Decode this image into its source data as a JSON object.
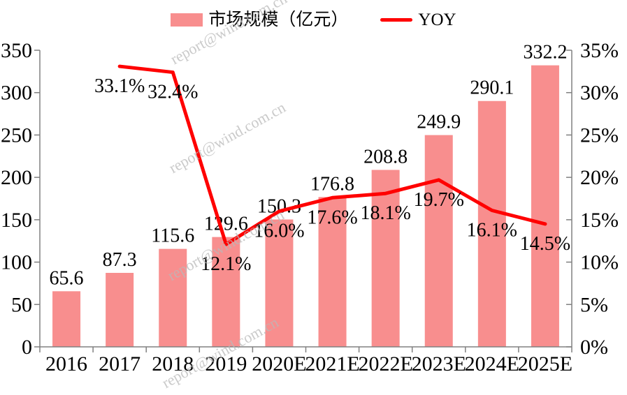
{
  "page": {
    "background": "#FFFFFF"
  },
  "legend": {
    "items": [
      {
        "label": "市场规模（亿元）",
        "type": "bar-swatch",
        "color": "#F88E8E"
      },
      {
        "label": "YOY",
        "type": "line-swatch",
        "color": "#FF0000"
      }
    ]
  },
  "watermark": {
    "text": "report@wind.com.cn"
  },
  "colors": {
    "bar": "#F88E8E",
    "line": "#FF0000",
    "axis": "#808080",
    "label_text": "#000000",
    "watermark": "#B9B9B9"
  },
  "chart_data": {
    "type": "bar",
    "subtype": "combo-bar-line",
    "categories": [
      "2016",
      "2017",
      "2018",
      "2019",
      "2020E",
      "2021E",
      "2022E",
      "2023E",
      "2024E",
      "2025E"
    ],
    "series": [
      {
        "name": "市场规模（亿元）",
        "type": "bar",
        "axis": "left",
        "color": "#F88E8E",
        "values": [
          65.6,
          87.3,
          115.6,
          129.6,
          150.3,
          176.8,
          208.8,
          249.9,
          290.1,
          332.2
        ],
        "labels": [
          "65.6",
          "87.3",
          "115.6",
          "129.6",
          "150.3",
          "176.8",
          "208.8",
          "249.9",
          "290.1",
          "332.2"
        ]
      },
      {
        "name": "YOY",
        "type": "line",
        "axis": "right",
        "color": "#FF0000",
        "values": [
          null,
          33.1,
          32.4,
          12.1,
          16.0,
          17.6,
          18.1,
          19.7,
          16.1,
          14.5
        ],
        "labels": [
          "",
          "33.1%",
          "32.4%",
          "12.1%",
          "16.0%",
          "17.6%",
          "18.1%",
          "19.7%",
          "16.1%",
          "14.5%"
        ]
      }
    ],
    "left_axis": {
      "min": 0,
      "max": 350,
      "step": 50,
      "tick_labels": [
        "0",
        "50",
        "100",
        "150",
        "200",
        "250",
        "300",
        "350"
      ]
    },
    "right_axis": {
      "min": 0,
      "max": 35,
      "step": 5,
      "tick_labels": [
        "0%",
        "5%",
        "10%",
        "15%",
        "20%",
        "25%",
        "30%",
        "35%"
      ]
    },
    "grid": false,
    "legend_position": "top",
    "title": ""
  }
}
